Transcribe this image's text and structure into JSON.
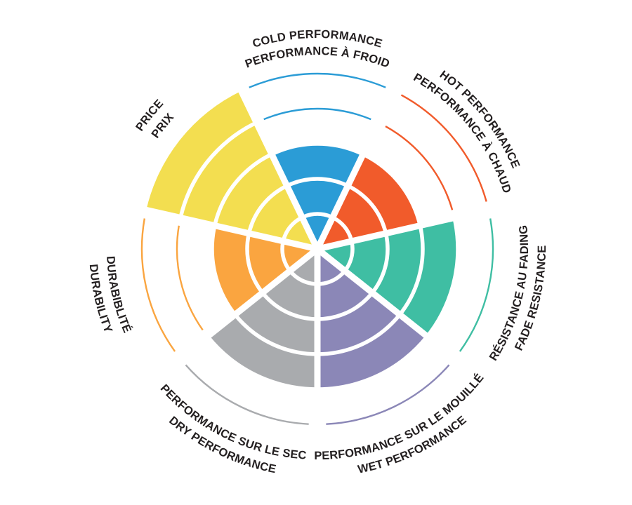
{
  "chart_data": {
    "type": "radial-rating-wheel",
    "title": "",
    "max_level": 5,
    "levels_shown_as_thin_arcs": "unfilled levels",
    "direction": "clockwise from top",
    "background": "#FFFFFF",
    "label_text_color": "#231F20",
    "divider_color": "#FFFFFF",
    "categories": [
      {
        "id": "cold-performance",
        "line1": "COLD PERFORMANCE",
        "line2": "PERFORMANCE À FROID",
        "value": 3,
        "color": "#2B9CD6"
      },
      {
        "id": "hot-performance",
        "line1": "HOT PERFORMANCE",
        "line2": "PERFORMANCE À CHAUD",
        "value": 3,
        "color": "#F15B2B"
      },
      {
        "id": "fade-resistance",
        "line1": "RÉSISTANCE AU FADING",
        "line2": "FADE RESISTANCE",
        "value": 4,
        "color": "#3FBEA3"
      },
      {
        "id": "wet-performance",
        "line1": "PERFORMANCE SUR LE MOUILLÉ",
        "line2": "WET PERFORMANCE",
        "value": 4,
        "color": "#8B87B7"
      },
      {
        "id": "dry-performance",
        "line1": "PERFORMANCE SUR LE SEC",
        "line2": "DRY PERFORMANCE",
        "value": 4,
        "color": "#A9ABAE"
      },
      {
        "id": "durability",
        "line1": "DURABIBLITÉ",
        "line2": "DURABILITY",
        "value": 3,
        "color": "#FAA540"
      },
      {
        "id": "price",
        "line1": "PRICE",
        "line2": "PRIX",
        "value": 5,
        "color": "#F3DE50"
      }
    ]
  }
}
